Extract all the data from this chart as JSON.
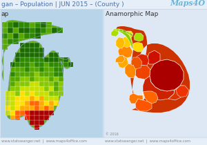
{
  "bg_color": "#dde8f4",
  "title_text": "gan – Population | JUN 2015 – (County )",
  "title_color": "#4a6fa5",
  "title_fontsize": 6.5,
  "left_label": "ap",
  "right_label": "Anamorphic Map",
  "label_fontsize": 6.5,
  "label_color": "#333333",
  "logo_text": "Maps4O",
  "logo_color": "#5bafd6",
  "logo_fontsize": 8,
  "footer_text1": "www.statswanger.net  |  www.maps4office.com",
  "footer_text2": "www.statswanger.net  |  www.maps4office.com",
  "footer_color": "#888888",
  "footer_fontsize": 3.8,
  "copyright_text": "© 2016",
  "lake_color": "#b8d4e8",
  "left_bg": "#dde8f4",
  "right_bg": "#dde8f4"
}
